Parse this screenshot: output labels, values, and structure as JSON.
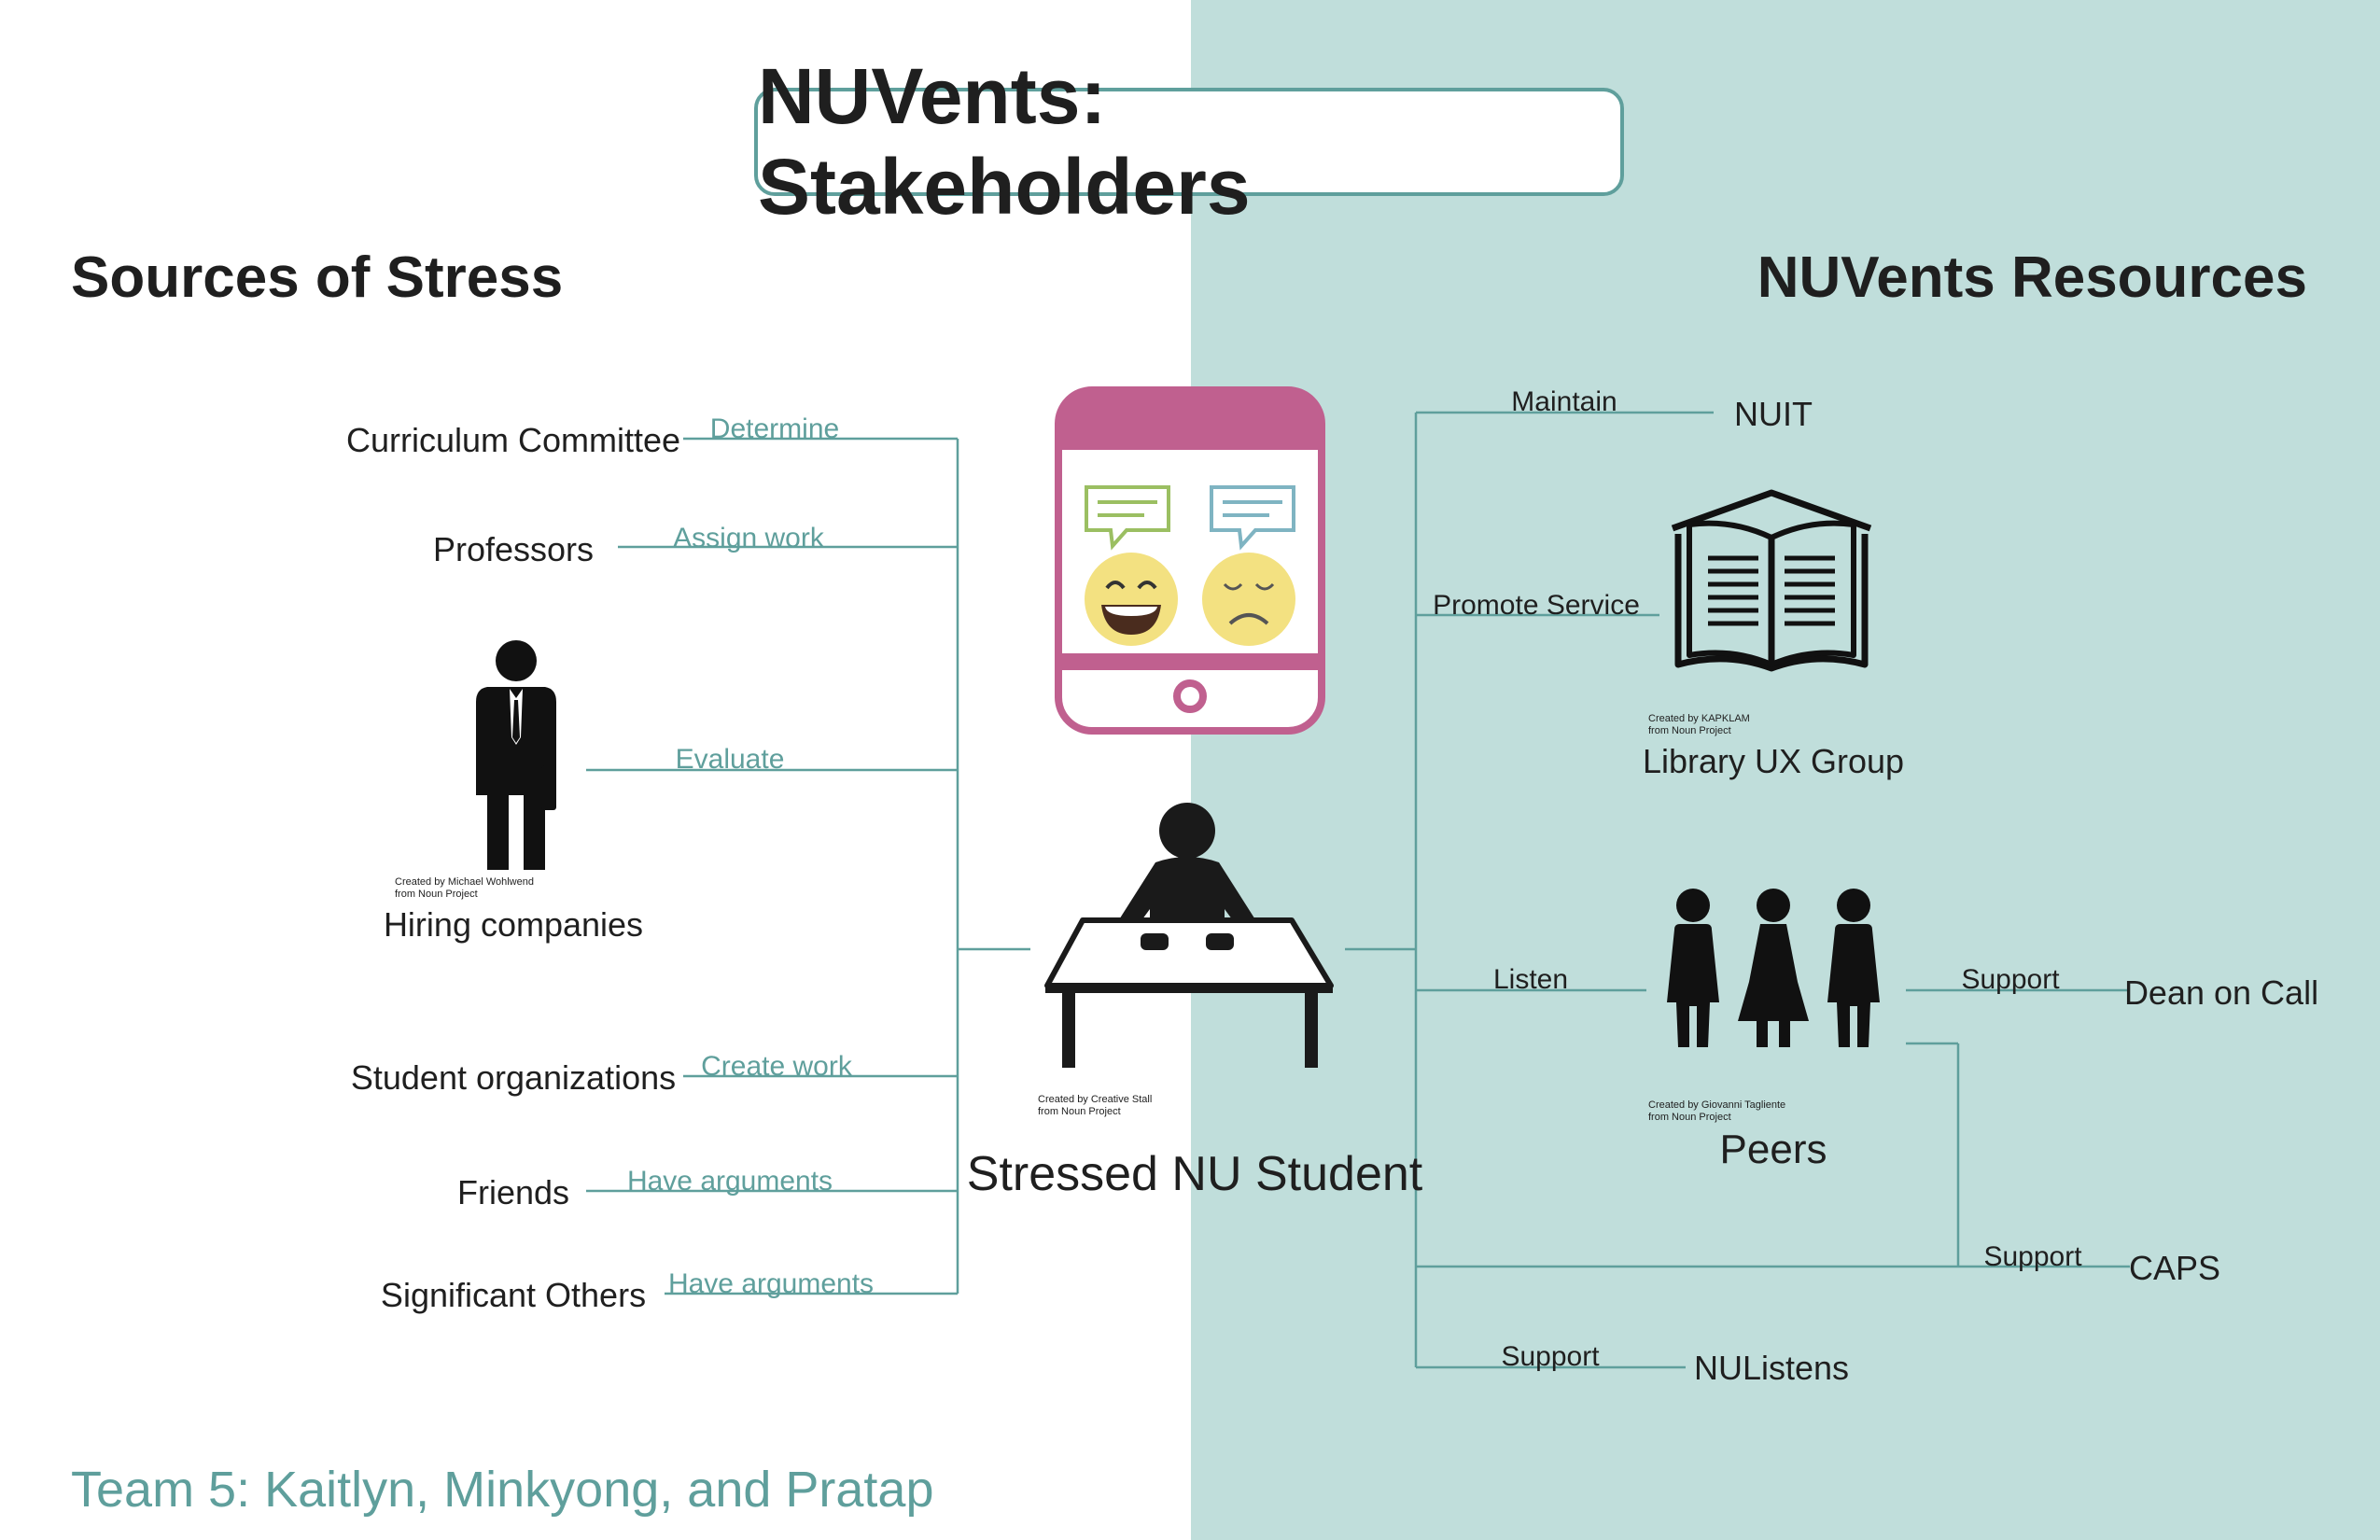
{
  "title": "NUVents: Stakeholders",
  "left_heading": "Sources of Stress",
  "right_heading": "NUVents Resources",
  "center": {
    "label": "Stressed NU Student",
    "credit_line1": "Created by Creative Stall",
    "credit_line2": "from Noun Project"
  },
  "stress_sources": [
    {
      "label": "Curriculum Committee",
      "edge": "Determine"
    },
    {
      "label": "Professors",
      "edge": "Assign work"
    },
    {
      "label": "Hiring companies",
      "edge": "Evaluate",
      "credit_line1": "Created by Michael Wohlwend",
      "credit_line2": "from Noun Project"
    },
    {
      "label": "Student organizations",
      "edge": "Create work"
    },
    {
      "label": "Friends",
      "edge": "Have arguments"
    },
    {
      "label": "Significant Others",
      "edge": "Have arguments"
    }
  ],
  "resources": [
    {
      "label": "NUIT",
      "edge": "Maintain"
    },
    {
      "label": "Library UX Group",
      "edge": "Promote Service",
      "credit_line1": "Created by KAPKLAM",
      "credit_line2": "from Noun Project"
    },
    {
      "label": "Peers",
      "edge": "Listen",
      "credit_line1": "Created by Giovanni Tagliente",
      "credit_line2": "from Noun Project"
    },
    {
      "label": "Dean on Call",
      "edge": "Support"
    },
    {
      "label": "CAPS",
      "edge": "Support"
    },
    {
      "label": "NUListens",
      "edge": "Support"
    }
  ],
  "footer": "Team 5: Kaitlyn, Minkyong, and Pratap",
  "colors": {
    "teal_panel": "#c0dedb",
    "teal_line": "#5f9f9c",
    "phone_pink": "#c0608f",
    "emoji_yellow": "#f3e181",
    "text_dark": "#1f1f1f"
  }
}
